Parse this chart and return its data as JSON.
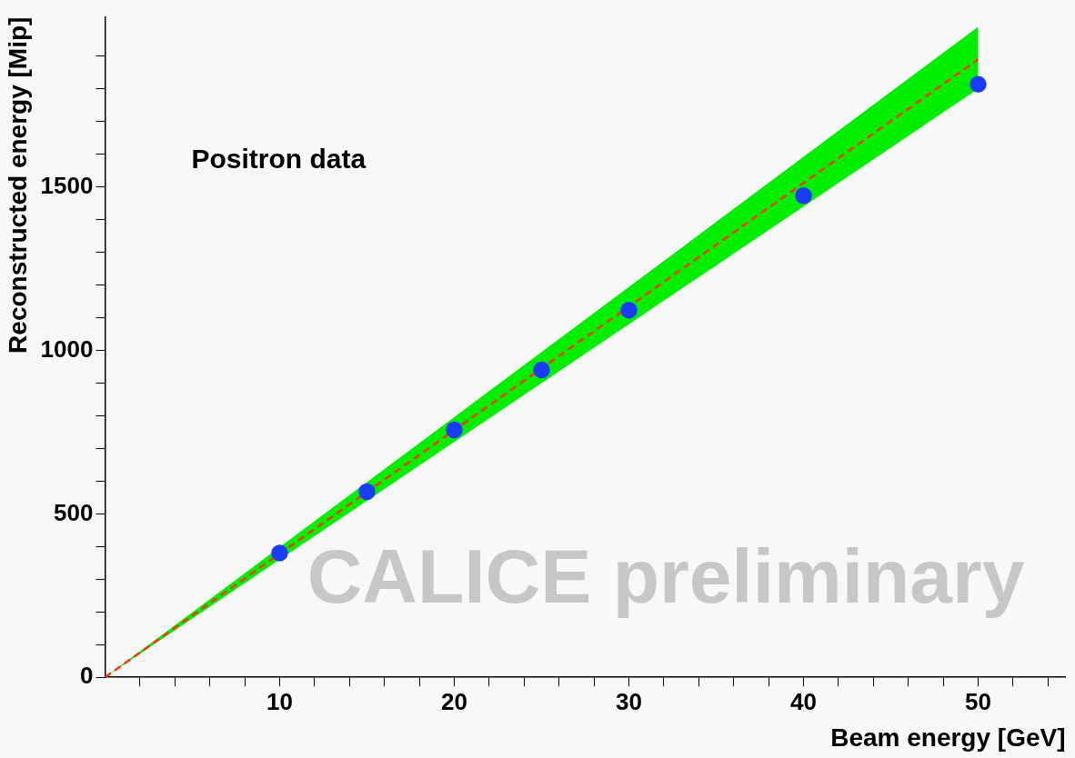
{
  "chart_data": {
    "type": "scatter",
    "xlabel": "Beam energy [GeV]",
    "ylabel": "Reconstructed energy [Mip]",
    "xlim": [
      0,
      55
    ],
    "ylim": [
      0,
      2020
    ],
    "xticks": [
      {
        "value": 2,
        "label": null
      },
      {
        "value": 4,
        "label": null
      },
      {
        "value": 6,
        "label": null
      },
      {
        "value": 8,
        "label": null
      },
      10,
      {
        "value": 12,
        "label": null
      },
      {
        "value": 14,
        "label": null
      },
      {
        "value": 16,
        "label": null
      },
      {
        "value": 18,
        "label": null
      },
      20,
      {
        "value": 22,
        "label": null
      },
      {
        "value": 24,
        "label": null
      },
      {
        "value": 26,
        "label": null
      },
      {
        "value": 28,
        "label": null
      },
      30,
      {
        "value": 32,
        "label": null
      },
      {
        "value": 34,
        "label": null
      },
      {
        "value": 36,
        "label": null
      },
      {
        "value": 38,
        "label": null
      },
      40,
      {
        "value": 42,
        "label": null
      },
      {
        "value": 44,
        "label": null
      },
      {
        "value": 46,
        "label": null
      },
      {
        "value": 48,
        "label": null
      },
      50,
      {
        "value": 52,
        "label": null
      },
      {
        "value": 54,
        "label": null
      }
    ],
    "yticks": [
      0,
      {
        "value": 100,
        "label": null
      },
      {
        "value": 200,
        "label": null
      },
      {
        "value": 300,
        "label": null
      },
      {
        "value": 400,
        "label": null
      },
      500,
      {
        "value": 600,
        "label": null
      },
      {
        "value": 700,
        "label": null
      },
      {
        "value": 800,
        "label": null
      },
      {
        "value": 900,
        "label": null
      },
      1000,
      {
        "value": 1100,
        "label": null
      },
      {
        "value": 1200,
        "label": null
      },
      {
        "value": 1300,
        "label": null
      },
      {
        "value": 1400,
        "label": null
      },
      1500,
      {
        "value": 1600,
        "label": null
      },
      {
        "value": 1700,
        "label": null
      },
      {
        "value": 1800,
        "label": null
      },
      {
        "value": 1900,
        "label": null
      }
    ],
    "series": [
      {
        "type": "line",
        "color": "#ff3300",
        "line_style": "dashed",
        "marker": "none",
        "x": [
          0,
          10,
          20,
          30,
          40,
          50
        ],
        "values": [
          0,
          378,
          756,
          1134,
          1512,
          1890
        ],
        "lower": [
          0,
          360,
          720,
          1080,
          1440,
          1800
        ],
        "upper": [
          0,
          398,
          796,
          1194,
          1592,
          1990
        ]
      },
      {
        "type": "scatter",
        "color": "#1a3cff",
        "marker": "circle",
        "x": [
          10,
          15,
          20,
          25,
          30,
          40,
          50
        ],
        "values": [
          380,
          568,
          757,
          940,
          1123,
          1473,
          1814
        ]
      }
    ],
    "grid": false,
    "legend": false,
    "annotations": [
      "Positron data",
      "CALICE preliminary"
    ]
  }
}
